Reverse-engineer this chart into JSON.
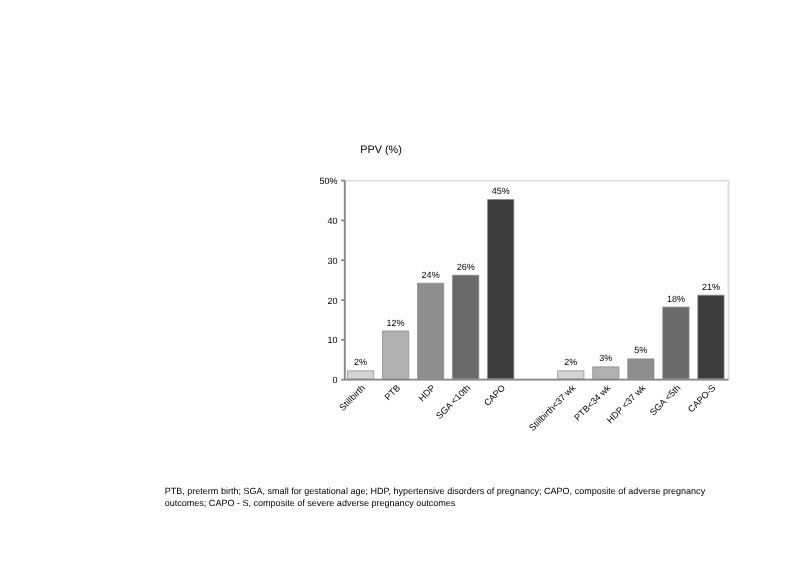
{
  "chart_data": {
    "type": "bar",
    "ylabel": "PPV (%)",
    "categories": [
      "Stillbirth",
      "PTB",
      "HDP",
      "SGA <10th",
      "CAPO",
      null,
      "Stillbirth<37 wk",
      "PTB<34 wk",
      "HDP <37 wk",
      "SGA <5th",
      "CAPO-S"
    ],
    "values": [
      2,
      12,
      24,
      26,
      45,
      null,
      2,
      3,
      5,
      18,
      21
    ],
    "colors": [
      "#d4d4d4",
      "#b0b0b0",
      "#8e8e8e",
      "#6a6a6a",
      "#3c3c3c",
      "#ffffff",
      "#d4d4d4",
      "#b0b0b0",
      "#8e8e8e",
      "#6a6a6a",
      "#3c3c3c"
    ],
    "value_labels": [
      "2%",
      "12%",
      "24%",
      "26%",
      "45%",
      null,
      "2%",
      "3%",
      "5%",
      "18%",
      "21%"
    ],
    "ylim": [
      0,
      50
    ],
    "yticks": [
      0,
      10,
      20,
      30,
      40,
      {
        "value": 50,
        "label": "50%"
      }
    ],
    "grid": false,
    "annotations": [
      "PTB, preterm birth; SGA, small for gestational age; HDP, hypertensive disorders of pregnancy; CAPO, composite of adverse pregnancy",
      "outcomes; CAPO - S, composite of severe adverse pregnancy outcomes"
    ]
  }
}
